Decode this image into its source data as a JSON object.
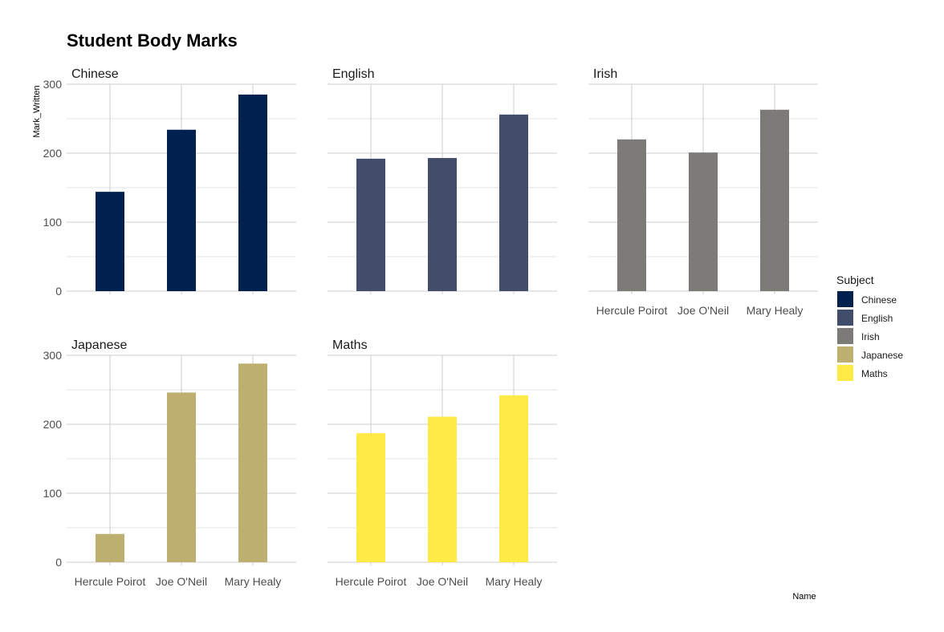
{
  "chart_data": {
    "type": "bar",
    "title": "Student Body Marks",
    "xlabel": "Name",
    "ylabel": "Mark_Written",
    "ylim": [
      0,
      300
    ],
    "yticks": [
      0,
      100,
      200,
      300
    ],
    "grid": true,
    "categories": [
      "Hercule Poirot",
      "Joe O'Neil",
      "Mary Healy"
    ],
    "series": [
      {
        "name": "Chinese",
        "color": "#00204d",
        "values": [
          144,
          234,
          285
        ]
      },
      {
        "name": "English",
        "color": "#414d6b",
        "values": [
          192,
          193,
          256
        ]
      },
      {
        "name": "Irish",
        "color": "#7c7b78",
        "values": [
          220,
          201,
          263
        ]
      },
      {
        "name": "Japanese",
        "color": "#bcaf6f",
        "values": [
          41,
          246,
          288
        ]
      },
      {
        "name": "Maths",
        "color": "#ffea46",
        "values": [
          187,
          211,
          242
        ]
      }
    ],
    "legend": {
      "title": "Subject",
      "position": "right"
    }
  }
}
